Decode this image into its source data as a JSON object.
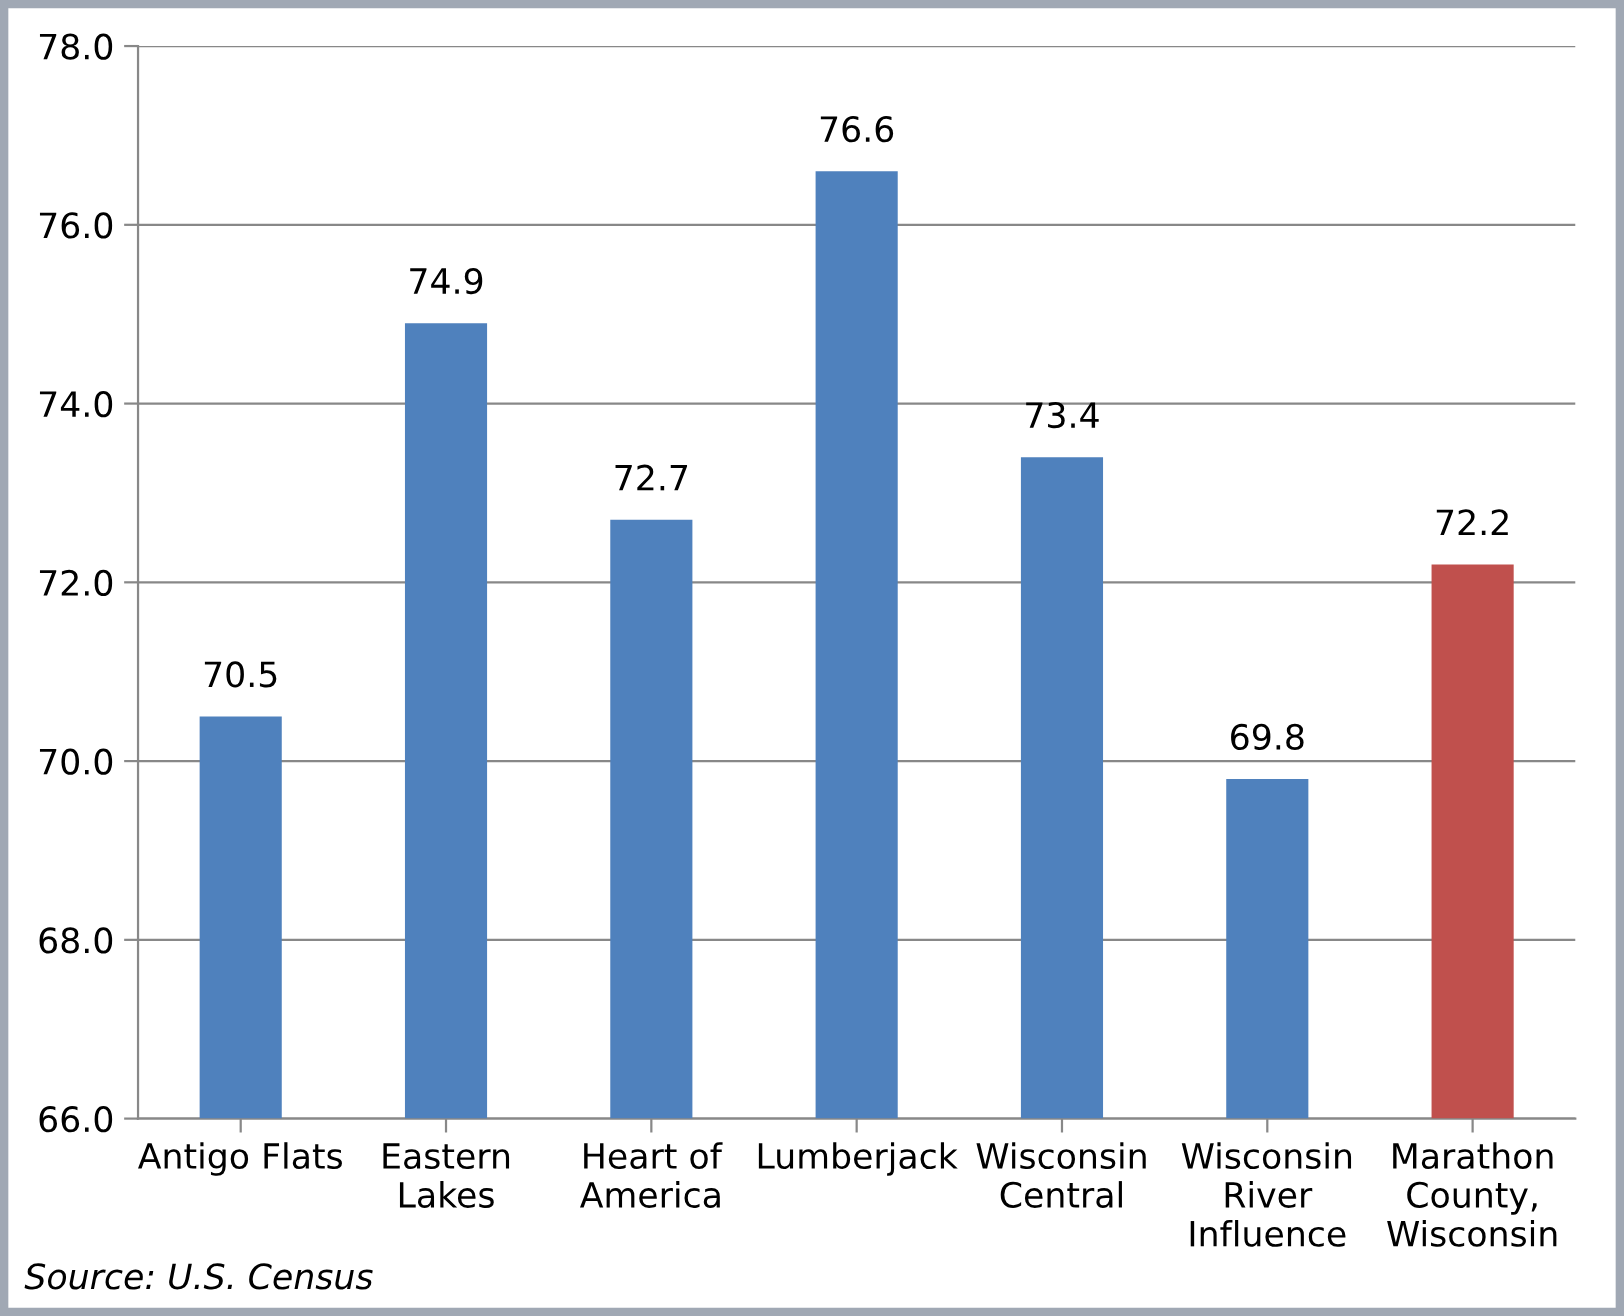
{
  "chart_data": {
    "type": "bar",
    "categories": [
      "Antigo Flats",
      "Eastern\nLakes",
      "Heart of\nAmerica",
      "Lumberjack",
      "Wisconsin\nCentral",
      "Wisconsin\nRiver\nInfluence",
      "Marathon\nCounty,\nWisconsin"
    ],
    "values": [
      70.5,
      74.9,
      72.7,
      76.6,
      73.4,
      69.8,
      72.2
    ],
    "value_labels": [
      "70.5",
      "74.9",
      "72.7",
      "76.6",
      "73.4",
      "69.8",
      "72.2"
    ],
    "colors": [
      "#4f81bd",
      "#4f81bd",
      "#4f81bd",
      "#4f81bd",
      "#4f81bd",
      "#4f81bd",
      "#c0504d"
    ],
    "ylim": [
      66,
      78
    ],
    "yticks": [
      {
        "value": 66,
        "label": "66.0"
      },
      {
        "value": 68,
        "label": "68.0"
      },
      {
        "value": 70,
        "label": "70.0"
      },
      {
        "value": 72,
        "label": "72.0"
      },
      {
        "value": 74,
        "label": "74.0"
      },
      {
        "value": 76,
        "label": "76.0"
      },
      {
        "value": 78,
        "label": "78.0"
      }
    ],
    "grid": "y",
    "annotations": [
      "Source: U.S. Census"
    ]
  }
}
